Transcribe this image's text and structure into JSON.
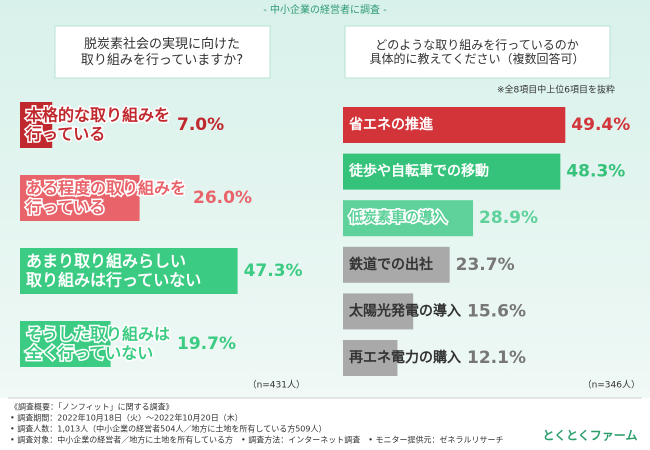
{
  "header": "- 中小企業の経営者に調査 -",
  "chart_data": [
    {
      "type": "bar",
      "orientation": "horizontal",
      "title": "脱炭素社会の実現に向けた\n取り組みを行っていますか?",
      "categories": [
        "本格的な取り組みを\n行っている",
        "ある程度の取り組みを\n行っている",
        "あまり取り組みらしい\n取り組みは行っていない",
        "そうした取り組みは\n全く行っていない"
      ],
      "values": [
        7.0,
        26.0,
        47.3,
        19.7
      ],
      "value_labels": [
        "7.0%",
        "26.0%",
        "47.3%",
        "19.7%"
      ],
      "colors": [
        "#c0282d",
        "#e8636a",
        "#3ccb82",
        "#3ccb82"
      ],
      "note": "（n=431人）"
    },
    {
      "type": "bar",
      "orientation": "horizontal",
      "title": "どのような取り組みを行っているのか\n具体的に教えてください（複数回答可）",
      "subtitle": "※全8項目中上位6項目を抜粋",
      "categories": [
        "省エネの推進",
        "徒歩や自転車での移動",
        "低炭素車の導入",
        "鉄道での出社",
        "太陽光発電の導入",
        "再エネ電力の購入"
      ],
      "values": [
        49.4,
        48.3,
        28.9,
        23.7,
        15.6,
        12.1
      ],
      "value_labels": [
        "49.4%",
        "48.3%",
        "28.9%",
        "23.7%",
        "15.6%",
        "12.1%"
      ],
      "colors": [
        "#d2343a",
        "#35c27a",
        "#5fd19b",
        "#a9a9a9",
        "#a9a9a9",
        "#a9a9a9"
      ],
      "note": "（n=346人）"
    }
  ],
  "footer": {
    "lines": [
      "《調査概要：「ノンフィット」に関する調査》",
      "• 調査期間：2022年10月18日（火）～2022年10月20日（木）",
      "• 調査人数：1,013人（中小企業の経営者504人／地方に土地を所有している方509人）",
      "• 調査対象：中小企業の経営者／地方に土地を所有している方　• 調査方法：インターネット調査　• モニター提供元：ゼネラルリサーチ"
    ],
    "logo": "とくとくファーム"
  }
}
